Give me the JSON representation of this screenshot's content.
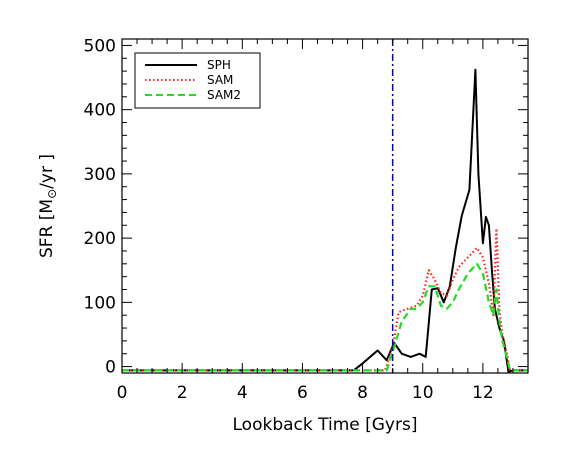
{
  "chart_data": {
    "type": "line",
    "title": "",
    "xlabel": "Lookback Time [Gyrs]",
    "ylabel": {
      "prefix": "SFR  [M",
      "subscript": "⊙",
      "suffix": "/yr  ]"
    },
    "xlim": [
      0,
      13.5
    ],
    "ylim": [
      -10,
      510
    ],
    "xticks": [
      0,
      2,
      4,
      6,
      8,
      10,
      12
    ],
    "yticks": [
      0,
      100,
      200,
      300,
      400,
      500
    ],
    "grid": false,
    "legend_position": "top-left",
    "vline": {
      "x": 9.0,
      "color": "#0000cc",
      "style": "dash-dot"
    },
    "series": [
      {
        "name": "SPH",
        "color": "#000000",
        "style": "solid",
        "x": [
          0,
          7.7,
          8.0,
          8.5,
          8.8,
          9.05,
          9.3,
          9.6,
          9.9,
          10.1,
          10.3,
          10.5,
          10.7,
          10.9,
          11.1,
          11.3,
          11.55,
          11.75,
          11.85,
          12.0,
          12.1,
          12.2,
          12.3,
          12.4,
          12.55,
          12.7,
          12.85,
          13.0,
          13.5
        ],
        "y": [
          -6,
          -6,
          5,
          25,
          10,
          37,
          20,
          15,
          20,
          15,
          120,
          122,
          100,
          125,
          185,
          235,
          275,
          462,
          300,
          192,
          233,
          220,
          150,
          90,
          60,
          40,
          -8,
          -6,
          -6
        ]
      },
      {
        "name": "SAM",
        "color": "#ff2020",
        "style": "dotted",
        "x": [
          0,
          8.75,
          9.0,
          9.2,
          9.5,
          9.8,
          10.0,
          10.2,
          10.4,
          10.6,
          10.8,
          11.0,
          11.2,
          11.5,
          11.8,
          12.0,
          12.2,
          12.35,
          12.45,
          12.55,
          12.65,
          12.8,
          12.9,
          13.5
        ],
        "y": [
          -6,
          -6,
          30,
          85,
          90,
          95,
          110,
          150,
          135,
          115,
          110,
          135,
          155,
          170,
          185,
          170,
          130,
          80,
          215,
          90,
          50,
          20,
          -6,
          -6
        ]
      },
      {
        "name": "SAM2",
        "color": "#20dd20",
        "style": "dashed",
        "x": [
          0,
          8.8,
          9.05,
          9.3,
          9.6,
          9.8,
          10.0,
          10.2,
          10.4,
          10.6,
          10.8,
          11.0,
          11.2,
          11.5,
          11.8,
          12.0,
          12.2,
          12.35,
          12.45,
          12.55,
          12.65,
          12.8,
          12.9,
          13.5
        ],
        "y": [
          -6,
          -6,
          30,
          70,
          90,
          90,
          100,
          125,
          125,
          95,
          90,
          100,
          120,
          145,
          160,
          145,
          100,
          80,
          120,
          70,
          40,
          15,
          -6,
          -6
        ]
      }
    ]
  }
}
